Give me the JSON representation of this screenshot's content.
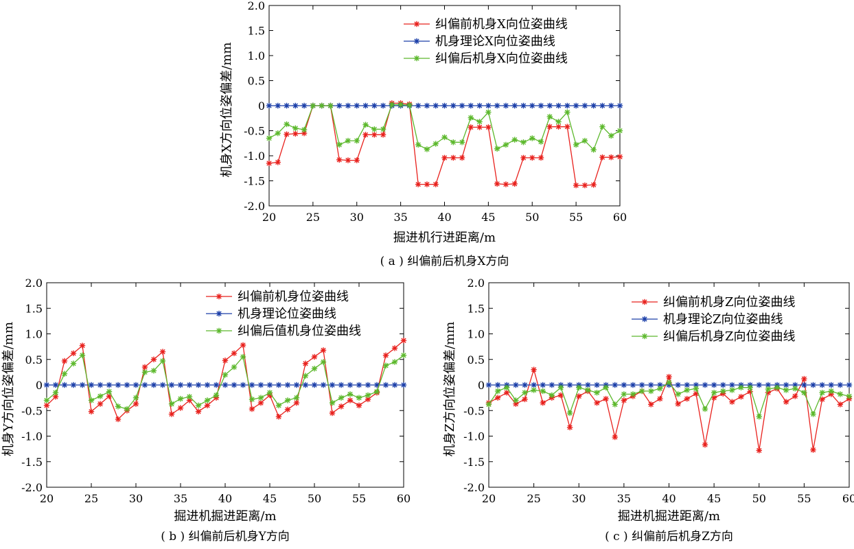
{
  "colors": {
    "before": "#e8201c",
    "theory": "#1a3ea8",
    "after": "#5cb82c"
  },
  "chart_data": [
    {
      "type": "line",
      "caption": "( a ) 纠偏前后机身X方向",
      "xlabel": "掘进机行进距离/m",
      "ylabel": "机身X方向位姿偏差/mm",
      "xlim": [
        20,
        60
      ],
      "ylim": [
        -2.0,
        2.0
      ],
      "xticks": [
        "20",
        "25",
        "30",
        "35",
        "40",
        "45",
        "50",
        "55",
        "60"
      ],
      "yticks": [
        "2.0",
        "1.5",
        "1.0",
        "0.5",
        "0",
        "-0.5",
        "-1.0",
        "-1.5",
        "-2.0"
      ],
      "grid": false,
      "legend_position": "top-right",
      "x": [
        20,
        21,
        22,
        23,
        24,
        25,
        26,
        27,
        28,
        29,
        30,
        31,
        32,
        33,
        34,
        35,
        36,
        37,
        38,
        39,
        40,
        41,
        42,
        43,
        44,
        45,
        46,
        47,
        48,
        49,
        50,
        51,
        52,
        53,
        54,
        55,
        56,
        57,
        58,
        59,
        60
      ],
      "series": [
        {
          "name": "纠偏前机身X向位姿曲线",
          "color_key": "before",
          "values": [
            -1.15,
            -1.13,
            -0.57,
            -0.56,
            -0.55,
            0,
            0,
            0,
            -1.08,
            -1.09,
            -1.09,
            -0.58,
            -0.58,
            -0.58,
            0.05,
            0.05,
            0.03,
            -1.57,
            -1.57,
            -1.57,
            -1.04,
            -1.04,
            -1.04,
            -0.43,
            -0.43,
            -0.43,
            -1.56,
            -1.57,
            -1.56,
            -1.04,
            -1.04,
            -1.04,
            -0.42,
            -0.42,
            -0.42,
            -1.59,
            -1.59,
            -1.58,
            -1.03,
            -1.03,
            -1.02
          ]
        },
        {
          "name": "机身理论X向位姿曲线",
          "color_key": "theory",
          "values": [
            0,
            0,
            0,
            0,
            0,
            0,
            0,
            0,
            0,
            0,
            0,
            0,
            0,
            0,
            0,
            0,
            0,
            0,
            0,
            0,
            0,
            0,
            0,
            0,
            0,
            0,
            0,
            0,
            0,
            0,
            0,
            0,
            0,
            0,
            0,
            0,
            0,
            0,
            0,
            0,
            0
          ]
        },
        {
          "name": "纠偏后机身X向位姿曲线",
          "color_key": "after",
          "values": [
            -0.65,
            -0.55,
            -0.37,
            -0.45,
            -0.48,
            0,
            0,
            0,
            -0.78,
            -0.7,
            -0.7,
            -0.38,
            -0.47,
            -0.47,
            0.02,
            0.02,
            0.01,
            -0.78,
            -0.87,
            -0.76,
            -0.63,
            -0.73,
            -0.73,
            -0.24,
            -0.32,
            -0.13,
            -0.86,
            -0.78,
            -0.68,
            -0.73,
            -0.65,
            -0.72,
            -0.22,
            -0.32,
            -0.13,
            -0.78,
            -0.7,
            -0.88,
            -0.42,
            -0.6,
            -0.5
          ]
        }
      ]
    },
    {
      "type": "line",
      "caption": "( b ) 纠偏前后机身Y方向",
      "xlabel": "掘进机掘进距离/m",
      "ylabel": "机身Y方向位姿偏差/mm",
      "xlim": [
        20,
        60
      ],
      "ylim": [
        -2.0,
        2.0
      ],
      "xticks": [
        "20",
        "25",
        "30",
        "35",
        "40",
        "45",
        "50",
        "55",
        "60"
      ],
      "yticks": [
        "2.0",
        "1.5",
        "1.0",
        "0.5",
        "0",
        "-0.5",
        "-1.0",
        "-1.5",
        "-2.0"
      ],
      "grid": false,
      "legend_position": "top-right",
      "x": [
        20,
        21,
        22,
        23,
        24,
        25,
        26,
        27,
        28,
        29,
        30,
        31,
        32,
        33,
        34,
        35,
        36,
        37,
        38,
        39,
        40,
        41,
        42,
        43,
        44,
        45,
        46,
        47,
        48,
        49,
        50,
        51,
        52,
        53,
        54,
        55,
        56,
        57,
        58,
        59,
        60
      ],
      "series": [
        {
          "name": "纠偏前机身位姿曲线",
          "color_key": "before",
          "values": [
            -0.4,
            -0.23,
            0.47,
            0.62,
            0.77,
            -0.52,
            -0.37,
            -0.22,
            -0.67,
            -0.5,
            -0.37,
            0.35,
            0.5,
            0.65,
            -0.57,
            -0.45,
            -0.3,
            -0.52,
            -0.4,
            -0.25,
            0.48,
            0.62,
            0.78,
            -0.47,
            -0.35,
            -0.2,
            -0.62,
            -0.48,
            -0.35,
            0.42,
            0.55,
            0.68,
            -0.55,
            -0.42,
            -0.3,
            -0.4,
            -0.28,
            -0.15,
            0.58,
            0.72,
            0.87
          ]
        },
        {
          "name": "机身理论位姿曲线",
          "color_key": "theory",
          "values": [
            0,
            0,
            0,
            0,
            0,
            0,
            0,
            0,
            0,
            0,
            0,
            0,
            0,
            0,
            0,
            0,
            0,
            0,
            0,
            0,
            0,
            0,
            0,
            0,
            0,
            0,
            0,
            0,
            0,
            0,
            0,
            0,
            0,
            0,
            0,
            0,
            0,
            0,
            0,
            0,
            0
          ]
        },
        {
          "name": "纠偏后值机身位姿曲线",
          "color_key": "after",
          "values": [
            -0.3,
            -0.15,
            0.22,
            0.42,
            0.58,
            -0.3,
            -0.22,
            -0.13,
            -0.42,
            -0.47,
            -0.25,
            0.25,
            0.28,
            0.47,
            -0.37,
            -0.27,
            -0.23,
            -0.4,
            -0.3,
            -0.2,
            0.2,
            0.35,
            0.55,
            -0.28,
            -0.25,
            -0.15,
            -0.4,
            -0.3,
            -0.25,
            0.18,
            0.32,
            0.45,
            -0.35,
            -0.25,
            -0.18,
            -0.25,
            -0.2,
            -0.13,
            0.38,
            0.45,
            0.58
          ]
        }
      ]
    },
    {
      "type": "line",
      "caption": "( c ) 纠偏前后机身Z方向",
      "xlabel": "掘进机掘进距离/m",
      "ylabel": "机身Z方向位姿偏差/mm",
      "xlim": [
        20,
        60
      ],
      "ylim": [
        -2.0,
        2.0
      ],
      "xticks": [
        "20",
        "25",
        "30",
        "35",
        "40",
        "45",
        "50",
        "55",
        "60"
      ],
      "yticks": [
        "2.0",
        "1.5",
        "1.0",
        "0.5",
        "0",
        "-0.5",
        "-1.0",
        "-1.5",
        "-2.0"
      ],
      "grid": false,
      "legend_position": "top-right",
      "x": [
        20,
        21,
        22,
        23,
        24,
        25,
        26,
        27,
        28,
        29,
        30,
        31,
        32,
        33,
        34,
        35,
        36,
        37,
        38,
        39,
        40,
        41,
        42,
        43,
        44,
        45,
        46,
        47,
        48,
        49,
        50,
        51,
        52,
        53,
        54,
        55,
        56,
        57,
        58,
        59,
        60
      ],
      "series": [
        {
          "name": "纠偏前机身Z向位姿曲线",
          "color_key": "before",
          "values": [
            -0.35,
            -0.25,
            -0.15,
            -0.37,
            -0.28,
            0.3,
            -0.35,
            -0.25,
            -0.2,
            -0.83,
            -0.22,
            -0.12,
            -0.35,
            -0.27,
            -1.02,
            -0.3,
            -0.22,
            -0.12,
            -0.38,
            -0.27,
            0.16,
            -0.37,
            -0.27,
            -0.17,
            -1.17,
            -0.25,
            -0.17,
            -0.33,
            -0.23,
            -0.13,
            -1.28,
            -0.15,
            -0.07,
            -0.33,
            -0.22,
            0.12,
            -1.27,
            -0.28,
            -0.18,
            -0.38,
            -0.27
          ]
        },
        {
          "name": "机身理论Z向位姿曲线",
          "color_key": "theory",
          "values": [
            0,
            0,
            0,
            0,
            0,
            0,
            0,
            0,
            0,
            0,
            0,
            0,
            0,
            0,
            0,
            0,
            0,
            0,
            0,
            0,
            0,
            0,
            0,
            0,
            0,
            0,
            0,
            0,
            0,
            0,
            0,
            0,
            0,
            0,
            0,
            0,
            0,
            0,
            0,
            0,
            0
          ]
        },
        {
          "name": "纠偏后机身Z向位姿曲线",
          "color_key": "after",
          "values": [
            -0.38,
            -0.12,
            -0.05,
            -0.3,
            -0.15,
            -0.1,
            -0.12,
            -0.2,
            -0.05,
            -0.55,
            -0.05,
            -0.1,
            -0.15,
            -0.05,
            -0.38,
            -0.18,
            -0.18,
            -0.12,
            -0.12,
            -0.07,
            0.05,
            -0.18,
            -0.1,
            -0.07,
            -0.47,
            -0.15,
            -0.12,
            -0.1,
            -0.05,
            -0.05,
            -0.62,
            -0.08,
            -0.05,
            -0.1,
            -0.07,
            -0.15,
            -0.57,
            -0.15,
            -0.12,
            -0.18,
            -0.22
          ]
        }
      ]
    }
  ]
}
